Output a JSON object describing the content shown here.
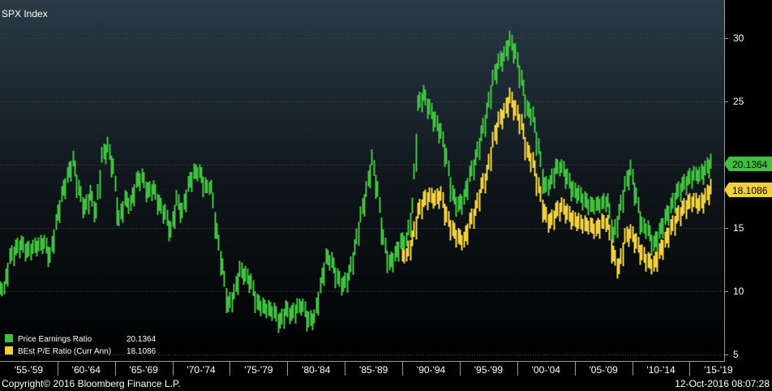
{
  "chart_data": {
    "type": "bar",
    "title": "SPX Index",
    "ylim": [
      5,
      32
    ],
    "y_ticks": [
      5,
      10,
      15,
      20,
      25,
      30
    ],
    "x_periods": [
      "'55-'59",
      "'60-'64",
      "'65-'69",
      "'70-'74",
      "'75-'79",
      "'80-'84",
      "'85-'89",
      "'90-'94",
      "'95-'99",
      "'00-'04",
      "'05-'09",
      "'10-'14",
      "'15-'19"
    ],
    "x_range": [
      1955,
      2018
    ],
    "grid": true,
    "series": [
      {
        "name": "Price Earnings Ratio",
        "last_value": "20.1364",
        "color": "#3fc13f",
        "style": "price-range bars",
        "points": [
          [
            1955.0,
            10.2
          ],
          [
            1955.5,
            12.6
          ],
          [
            1956.0,
            13.3
          ],
          [
            1956.5,
            13.7
          ],
          [
            1957.0,
            13.1
          ],
          [
            1957.5,
            13.4
          ],
          [
            1958.0,
            13.6
          ],
          [
            1958.5,
            13.8
          ],
          [
            1959.0,
            12.7
          ],
          [
            1959.5,
            15.3
          ],
          [
            1960.0,
            17.5
          ],
          [
            1960.5,
            19.0
          ],
          [
            1961.0,
            20.3
          ],
          [
            1961.5,
            18.0
          ],
          [
            1962.0,
            16.5
          ],
          [
            1962.5,
            17.6
          ],
          [
            1963.0,
            16.2
          ],
          [
            1963.5,
            20.6
          ],
          [
            1964.0,
            21.4
          ],
          [
            1964.5,
            19.7
          ],
          [
            1965.0,
            15.6
          ],
          [
            1965.5,
            17.2
          ],
          [
            1966.0,
            16.8
          ],
          [
            1966.5,
            18.6
          ],
          [
            1967.0,
            19.0
          ],
          [
            1967.5,
            17.8
          ],
          [
            1968.0,
            18.1
          ],
          [
            1968.5,
            16.8
          ],
          [
            1969.0,
            16.1
          ],
          [
            1969.5,
            14.7
          ],
          [
            1970.0,
            17.2
          ],
          [
            1970.5,
            16.2
          ],
          [
            1971.0,
            18.3
          ],
          [
            1971.5,
            19.3
          ],
          [
            1972.0,
            19.4
          ],
          [
            1972.5,
            18.2
          ],
          [
            1973.0,
            18.2
          ],
          [
            1973.5,
            14.6
          ],
          [
            1974.0,
            11.8
          ],
          [
            1974.5,
            8.8
          ],
          [
            1975.0,
            9.8
          ],
          [
            1975.5,
            11.6
          ],
          [
            1976.0,
            11.2
          ],
          [
            1976.5,
            10.6
          ],
          [
            1977.0,
            9.0
          ],
          [
            1977.5,
            8.7
          ],
          [
            1978.0,
            8.5
          ],
          [
            1978.5,
            8.3
          ],
          [
            1979.0,
            7.5
          ],
          [
            1979.5,
            8.5
          ],
          [
            1980.0,
            8.1
          ],
          [
            1980.5,
            8.7
          ],
          [
            1981.0,
            8.8
          ],
          [
            1981.5,
            7.6
          ],
          [
            1982.0,
            7.9
          ],
          [
            1982.5,
            10.3
          ],
          [
            1983.0,
            12.6
          ],
          [
            1983.5,
            12.3
          ],
          [
            1984.0,
            11.0
          ],
          [
            1984.5,
            10.4
          ],
          [
            1985.0,
            11.3
          ],
          [
            1985.5,
            13.3
          ],
          [
            1986.0,
            15.9
          ],
          [
            1986.5,
            17.9
          ],
          [
            1987.0,
            20.4
          ],
          [
            1987.5,
            17.9
          ],
          [
            1988.0,
            14.1
          ],
          [
            1988.5,
            12.1
          ],
          [
            1989.0,
            12.8
          ],
          [
            1989.5,
            13.8
          ],
          [
            1990.0,
            14.0
          ],
          [
            1990.5,
            16.6
          ],
          [
            1991.0,
            24.7
          ],
          [
            1991.5,
            25.5
          ],
          [
            1992.0,
            24.4
          ],
          [
            1992.5,
            23.4
          ],
          [
            1993.0,
            22.5
          ],
          [
            1993.5,
            20.5
          ],
          [
            1994.0,
            17.6
          ],
          [
            1994.5,
            16.7
          ],
          [
            1995.0,
            17.3
          ],
          [
            1995.5,
            19.1
          ],
          [
            1996.0,
            20.4
          ],
          [
            1996.5,
            22.3
          ],
          [
            1997.0,
            24.1
          ],
          [
            1997.5,
            26.7
          ],
          [
            1998.0,
            28.0
          ],
          [
            1998.5,
            28.6
          ],
          [
            1999.0,
            29.8
          ],
          [
            1999.5,
            28.8
          ],
          [
            2000.0,
            26.7
          ],
          [
            2000.5,
            24.3
          ],
          [
            2001.0,
            23.8
          ],
          [
            2001.5,
            21.3
          ],
          [
            2002.0,
            18.2
          ],
          [
            2002.5,
            18.5
          ],
          [
            2003.0,
            19.7
          ],
          [
            2003.5,
            19.8
          ],
          [
            2004.0,
            18.9
          ],
          [
            2004.5,
            17.9
          ],
          [
            2005.0,
            17.6
          ],
          [
            2005.5,
            17.1
          ],
          [
            2006.0,
            16.7
          ],
          [
            2006.5,
            16.8
          ],
          [
            2007.0,
            16.9
          ],
          [
            2007.5,
            17.1
          ],
          [
            2008.0,
            14.3
          ],
          [
            2008.5,
            16.1
          ],
          [
            2009.0,
            18.3
          ],
          [
            2009.5,
            19.6
          ],
          [
            2010.0,
            17.4
          ],
          [
            2010.5,
            15.1
          ],
          [
            2011.0,
            14.8
          ],
          [
            2011.5,
            13.6
          ],
          [
            2012.0,
            14.6
          ],
          [
            2012.5,
            15.7
          ],
          [
            2013.0,
            16.6
          ],
          [
            2013.5,
            17.7
          ],
          [
            2014.0,
            18.3
          ],
          [
            2014.5,
            18.8
          ],
          [
            2015.0,
            19.2
          ],
          [
            2015.5,
            19.1
          ],
          [
            2016.0,
            19.6
          ],
          [
            2016.5,
            20.1364
          ]
        ]
      },
      {
        "name": "BEst P/E Ratio (Curr Ann)",
        "last_value": "18.1086",
        "color": "#f2d03c",
        "style": "price-range bars",
        "points": [
          [
            1990.0,
            12.8
          ],
          [
            1990.5,
            14.0
          ],
          [
            1991.0,
            16.2
          ],
          [
            1991.5,
            17.1
          ],
          [
            1992.0,
            17.5
          ],
          [
            1992.5,
            17.2
          ],
          [
            1993.0,
            17.6
          ],
          [
            1993.5,
            15.9
          ],
          [
            1994.0,
            14.8
          ],
          [
            1994.5,
            14.2
          ],
          [
            1995.0,
            13.9
          ],
          [
            1995.5,
            15.4
          ],
          [
            1996.0,
            16.4
          ],
          [
            1996.5,
            18.2
          ],
          [
            1997.0,
            19.2
          ],
          [
            1997.5,
            21.8
          ],
          [
            1998.0,
            23.4
          ],
          [
            1998.5,
            24.1
          ],
          [
            1999.0,
            25.3
          ],
          [
            1999.5,
            24.3
          ],
          [
            2000.0,
            23.2
          ],
          [
            2000.5,
            21.0
          ],
          [
            2001.0,
            20.2
          ],
          [
            2001.5,
            18.2
          ],
          [
            2002.0,
            16.1
          ],
          [
            2002.5,
            15.4
          ],
          [
            2003.0,
            16.2
          ],
          [
            2003.5,
            16.7
          ],
          [
            2004.0,
            16.1
          ],
          [
            2004.5,
            15.6
          ],
          [
            2005.0,
            15.4
          ],
          [
            2005.5,
            15.2
          ],
          [
            2006.0,
            15.1
          ],
          [
            2006.5,
            14.8
          ],
          [
            2007.0,
            15.4
          ],
          [
            2007.5,
            15.3
          ],
          [
            2008.0,
            12.8
          ],
          [
            2008.5,
            11.8
          ],
          [
            2009.0,
            14.2
          ],
          [
            2009.5,
            14.6
          ],
          [
            2010.0,
            13.8
          ],
          [
            2010.5,
            12.9
          ],
          [
            2011.0,
            12.3
          ],
          [
            2011.5,
            12.0
          ],
          [
            2012.0,
            13.0
          ],
          [
            2012.5,
            13.9
          ],
          [
            2013.0,
            14.9
          ],
          [
            2013.5,
            15.8
          ],
          [
            2014.0,
            16.4
          ],
          [
            2014.5,
            16.9
          ],
          [
            2015.0,
            17.1
          ],
          [
            2015.5,
            16.8
          ],
          [
            2016.0,
            17.4
          ],
          [
            2016.5,
            18.1086
          ]
        ]
      }
    ]
  },
  "footer": {
    "copyright": "Copyright© 2016 Bloomberg Finance L.P.",
    "timestamp": "12-Oct-2016 08:07:28"
  }
}
